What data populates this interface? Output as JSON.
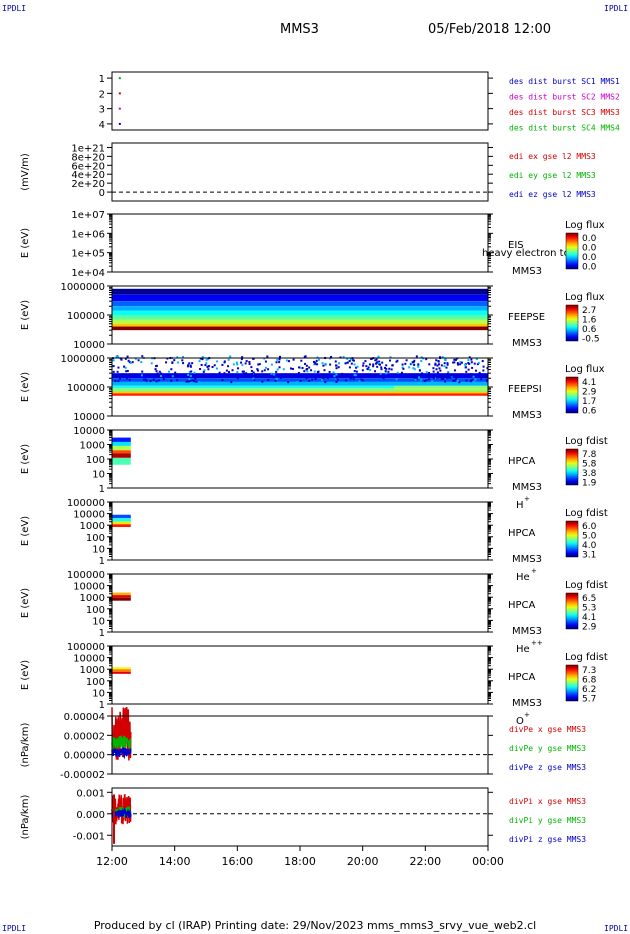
{
  "header": {
    "corner_label": "IPDLI",
    "spacecraft": "MMS3",
    "datetime": "05/Feb/2018 12:00"
  },
  "footer": {
    "text": "Produced by cl (IRAP)   Printing date: 29/Nov/2023   mms_mms3_srvy_vue_web2.cl"
  },
  "time_axis": {
    "range_hours": [
      12,
      24
    ],
    "ticks": [
      "12:00",
      "14:00",
      "16:00",
      "18:00",
      "20:00",
      "22:00",
      "00:00"
    ],
    "data_coverage_end": "12:35"
  },
  "colors": {
    "c1": "#0000c8",
    "c2": "#c800c8",
    "c3": "#d20000",
    "c4": "#00b400",
    "axis": "#000000"
  },
  "chart_data": [
    {
      "id": "des-dist",
      "type": "scatter",
      "ylabel": "",
      "ylim": [
        0.6,
        4.4
      ],
      "ticks": [
        "1",
        "2",
        "3",
        "4"
      ],
      "series": [
        {
          "name": "des dist burst SC1 MMS1",
          "color": "#0000c8",
          "x": [
            12.25
          ],
          "y": [
            1
          ]
        },
        {
          "name": "des dist burst SC2 MMS2",
          "color": "#c800c8",
          "x": [
            12.25
          ],
          "y": [
            2
          ]
        },
        {
          "name": "des dist burst SC3 MMS3",
          "color": "#d20000",
          "x": [
            12.25
          ],
          "y": [
            3
          ]
        },
        {
          "name": "des dist burst SC4 MMS4",
          "color": "#00b400",
          "x": [
            12.25
          ],
          "y": [
            4
          ]
        }
      ]
    },
    {
      "id": "edi-e",
      "type": "line",
      "ylabel": "(mV/m)",
      "ylim": [
        -2e+20,
        1.1e+21
      ],
      "ticks": [
        "1e+21",
        "8e+20",
        "6e+20",
        "4e+20",
        "2e+20",
        "0"
      ],
      "zero_line": true,
      "series": [
        {
          "name": "edi ex gse l2 MMS3",
          "color": "#d20000"
        },
        {
          "name": "edi ey gse l2 MMS3",
          "color": "#00b400"
        },
        {
          "name": "edi ez gse l2 MMS3",
          "color": "#0000c8"
        }
      ]
    },
    {
      "id": "eis",
      "type": "heatmap",
      "ylabel": "E (eV)",
      "log": true,
      "ylim": [
        10000.0,
        10000000.0
      ],
      "ticks": [
        "1e+07",
        "1e+06",
        "1e+05",
        "1e+04"
      ],
      "instrument": "EIS",
      "spacecraft": "MMS3",
      "overlay_text": "heavy electron to",
      "colorbar": {
        "label": "Log flux",
        "ticks": [
          "0.0",
          "0.0",
          "0.0",
          "0.0"
        ]
      }
    },
    {
      "id": "feepse",
      "type": "heatmap",
      "ylabel": "E (eV)",
      "log": true,
      "ylim": [
        10000,
        1000000
      ],
      "ticks": [
        "1000000",
        "100000",
        "10000"
      ],
      "instrument": "FEEPSE",
      "spacecraft": "MMS3",
      "colorbar": {
        "label": "Log flux",
        "ticks": [
          "2.7",
          "1.6",
          "0.6",
          "-0.5"
        ]
      },
      "coverage": [
        12,
        24
      ]
    },
    {
      "id": "feepsi",
      "type": "heatmap",
      "ylabel": "E (eV)",
      "log": true,
      "ylim": [
        10000,
        1000000
      ],
      "ticks": [
        "1000000",
        "100000",
        "10000"
      ],
      "instrument": "FEEPSI",
      "spacecraft": "MMS3",
      "colorbar": {
        "label": "Log flux",
        "ticks": [
          "4.1",
          "2.9",
          "1.7",
          "0.6"
        ]
      },
      "coverage": [
        12,
        24
      ]
    },
    {
      "id": "hpca-h",
      "type": "heatmap",
      "ylabel": "E (eV)",
      "log": true,
      "ylim": [
        1,
        10000
      ],
      "ticks": [
        "10000",
        "1000",
        "100",
        "10",
        "1"
      ],
      "instrument": "HPCA",
      "spacecraft": "MMS3",
      "species": "H",
      "species_sup": "+",
      "colorbar": {
        "label": "Log fdist",
        "ticks": [
          "7.8",
          "5.8",
          "3.8",
          "1.9"
        ]
      },
      "coverage": [
        12,
        12.6
      ]
    },
    {
      "id": "hpca-he",
      "type": "heatmap",
      "ylabel": "E (eV)",
      "log": true,
      "ylim": [
        1,
        100000
      ],
      "ticks": [
        "100000",
        "10000",
        "1000",
        "100",
        "10",
        "1"
      ],
      "instrument": "HPCA",
      "spacecraft": "MMS3",
      "species": "He",
      "species_sup": "+",
      "colorbar": {
        "label": "Log fdist",
        "ticks": [
          "6.0",
          "5.0",
          "4.0",
          "3.1"
        ]
      },
      "coverage": [
        12,
        12.6
      ]
    },
    {
      "id": "hpca-he2",
      "type": "heatmap",
      "ylabel": "E (eV)",
      "log": true,
      "ylim": [
        1,
        100000
      ],
      "ticks": [
        "100000",
        "10000",
        "1000",
        "100",
        "10",
        "1"
      ],
      "instrument": "HPCA",
      "spacecraft": "MMS3",
      "species": "He",
      "species_sup": "++",
      "colorbar": {
        "label": "Log fdist",
        "ticks": [
          "6.5",
          "5.3",
          "4.1",
          "2.9"
        ]
      },
      "coverage": [
        12,
        12.6
      ]
    },
    {
      "id": "hpca-o",
      "type": "heatmap",
      "ylabel": "E (eV)",
      "log": true,
      "ylim": [
        1,
        100000
      ],
      "ticks": [
        "100000",
        "10000",
        "1000",
        "100",
        "10",
        "1"
      ],
      "instrument": "HPCA",
      "spacecraft": "MMS3",
      "species": "O",
      "species_sup": "+",
      "colorbar": {
        "label": "Log fdist",
        "ticks": [
          "7.3",
          "6.8",
          "6.2",
          "5.7"
        ]
      },
      "coverage": [
        12,
        12.6
      ]
    },
    {
      "id": "divpe",
      "type": "line",
      "ylabel": "(nPa/km)",
      "ylim": [
        -2e-05,
        4e-05
      ],
      "ticks": [
        "0.00004",
        "0.00002",
        "0.00000",
        "-0.00002"
      ],
      "zero_line": true,
      "series": [
        {
          "name": "divPe x gse MMS3",
          "color": "#d20000"
        },
        {
          "name": "divPe y gse MMS3",
          "color": "#00b400"
        },
        {
          "name": "divPe z gse MMS3",
          "color": "#0000c8"
        }
      ],
      "coverage": [
        12,
        12.6
      ]
    },
    {
      "id": "divpi",
      "type": "line",
      "ylabel": "(nPa/km)",
      "ylim": [
        -0.0015,
        0.0012
      ],
      "ticks": [
        "0.001",
        "0.000",
        "-0.001"
      ],
      "zero_line": true,
      "series": [
        {
          "name": "divPi x gse MMS3",
          "color": "#d20000"
        },
        {
          "name": "divPi y gse MMS3",
          "color": "#00b400"
        },
        {
          "name": "divPi z gse MMS3",
          "color": "#0000c8"
        }
      ],
      "coverage": [
        12,
        12.6
      ]
    }
  ]
}
